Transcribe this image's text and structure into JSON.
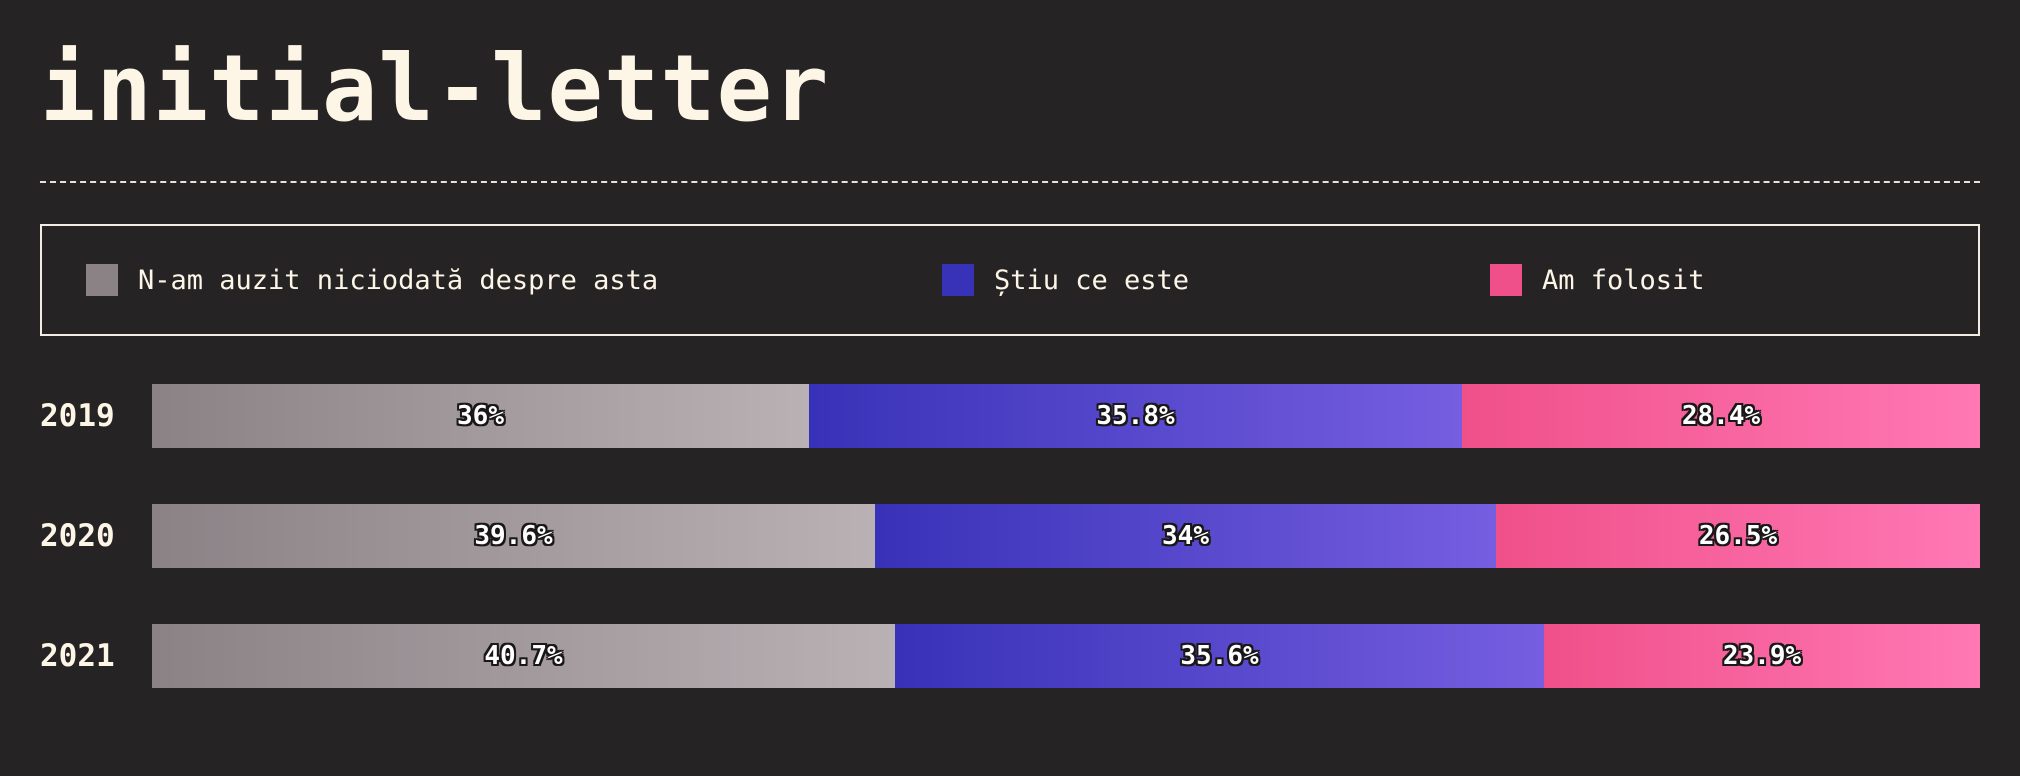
{
  "title": "initial-letter",
  "legend": {
    "items": [
      {
        "label": "N-am auzit niciodată despre asta",
        "color": "#8a8285"
      },
      {
        "label": "Știu ce este",
        "color": "#3832b8"
      },
      {
        "label": "Am folosit",
        "color": "#f0508a"
      }
    ]
  },
  "chart_data": {
    "type": "bar",
    "orientation": "horizontal",
    "stacked": true,
    "categories": [
      "2019",
      "2020",
      "2021"
    ],
    "series": [
      {
        "name": "N-am auzit niciodată despre asta",
        "values": [
          36,
          39.6,
          40.7
        ],
        "labels": [
          "36%",
          "39.6%",
          "40.7%"
        ],
        "color_start": "#8a8285",
        "color_end": "#b9b1b4"
      },
      {
        "name": "Știu ce este",
        "values": [
          35.8,
          34,
          35.6
        ],
        "labels": [
          "35.8%",
          "34%",
          "35.6%"
        ],
        "color_start": "#3832b8",
        "color_end": "#765ee0"
      },
      {
        "name": "Am folosit",
        "values": [
          28.4,
          26.5,
          23.9
        ],
        "labels": [
          "28.4%",
          "26.5%",
          "23.9%"
        ],
        "color_start": "#f0508a",
        "color_end": "#ff78b4"
      }
    ],
    "xlim": [
      0,
      100
    ],
    "legend_position": "top",
    "grid": false
  }
}
